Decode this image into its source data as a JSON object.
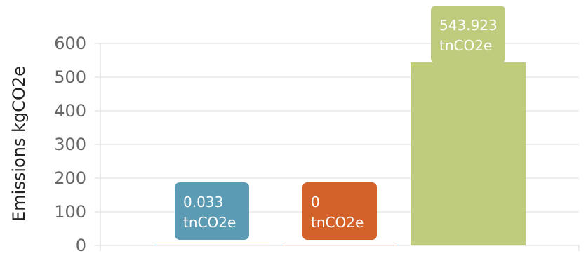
{
  "chart_data": {
    "type": "bar",
    "categories": [
      "",
      "",
      ""
    ],
    "values": [
      0.033,
      0,
      543.923
    ],
    "colors": [
      "#5b9bb3",
      "#d2622a",
      "#bfcc7e"
    ],
    "data_labels": [
      {
        "value": "0.033",
        "unit": "tnCO2e"
      },
      {
        "value": "0",
        "unit": "tnCO2e"
      },
      {
        "value": "543.923",
        "unit": "tnCO2e"
      }
    ],
    "title": "",
    "xlabel": "",
    "ylabel": "Emissions kgCO2e",
    "ylim": [
      0,
      600
    ],
    "yticks": [
      0,
      100,
      200,
      300,
      400,
      500,
      600
    ],
    "grid": true,
    "legend": "none"
  }
}
